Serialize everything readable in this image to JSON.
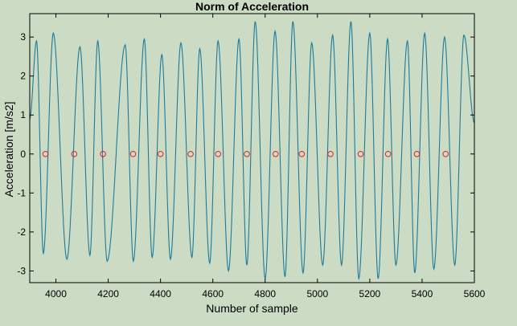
{
  "chart_data": {
    "type": "line",
    "title": "Norm of Acceleration",
    "xlabel": "Number of sample",
    "ylabel": "Acceleration [m/s2]",
    "xlim": [
      3900,
      5600
    ],
    "ylim": [
      -3.3,
      3.6
    ],
    "xticks": [
      "4000",
      "4200",
      "4400",
      "4600",
      "4800",
      "5000",
      "5200",
      "5400",
      "5600"
    ],
    "yticks": [
      "3",
      "2",
      "1",
      "0",
      "-1",
      "-2",
      "-3"
    ],
    "grid": false,
    "series": [
      {
        "type": "line",
        "color": "#1f7a9a",
        "x": [
          3900,
          3926,
          3952,
          3990,
          4042,
          4092,
          4130,
          4160,
          4196,
          4265,
          4296,
          4338,
          4368,
          4405,
          4438,
          4478,
          4520,
          4550,
          4588,
          4620,
          4660,
          4700,
          4730,
          4762,
          4800,
          4838,
          4876,
          4906,
          4945,
          4978,
          5020,
          5058,
          5092,
          5128,
          5158,
          5200,
          5232,
          5268,
          5300,
          5344,
          5372,
          5410,
          5445,
          5486,
          5525,
          5560,
          5600
        ],
        "y": [
          0.9,
          2.9,
          -2.55,
          3.1,
          -2.7,
          2.75,
          -2.6,
          2.9,
          -2.75,
          2.8,
          -2.75,
          2.95,
          -2.65,
          2.55,
          -2.7,
          2.85,
          -2.65,
          2.7,
          -2.8,
          2.9,
          -3.0,
          2.95,
          -2.85,
          3.4,
          -3.2,
          3.15,
          -3.15,
          3.4,
          -3.05,
          2.85,
          -2.85,
          3.05,
          -2.85,
          3.4,
          -3.2,
          3.1,
          -3.2,
          2.95,
          -2.85,
          2.9,
          -3.05,
          3.1,
          -2.95,
          3.0,
          -2.85,
          3.05,
          0.8
        ]
      },
      {
        "type": "scatter",
        "marker": "circle",
        "color": "#e02020",
        "x": [
          3960,
          4070,
          4180,
          4295,
          4400,
          4515,
          4620,
          4730,
          4840,
          4940,
          5050,
          5165,
          5270,
          5380,
          5490
        ],
        "y": [
          0,
          0,
          0,
          0,
          0,
          0,
          0,
          0,
          0,
          0,
          0,
          0,
          0,
          0,
          0
        ]
      }
    ]
  }
}
